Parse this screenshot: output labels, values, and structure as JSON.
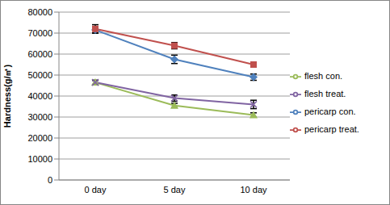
{
  "chart_data": {
    "type": "line",
    "y_label": "Hardness(g/㎡)",
    "categories": [
      "0 day",
      "5 day",
      "10 day"
    ],
    "series": [
      {
        "name": "pericarp con.",
        "color": "#4f81bd",
        "marker": "diamond",
        "values": [
          71500,
          57500,
          49000
        ],
        "error": [
          1500,
          2000,
          1500
        ]
      },
      {
        "name": "pericarp treat.",
        "color": "#c0504d",
        "marker": "square",
        "values": [
          72000,
          64000,
          55000
        ],
        "error": [
          2000,
          1500,
          1000
        ]
      },
      {
        "name": "flesh con.",
        "color": "#9bbb59",
        "marker": "triangle",
        "values": [
          46500,
          35500,
          31000
        ],
        "error": [
          1000,
          1000,
          1000
        ]
      },
      {
        "name": "flesh treat.",
        "color": "#8064a2",
        "marker": "x",
        "values": [
          46500,
          39000,
          36000
        ],
        "error": [
          1000,
          1500,
          2000
        ]
      }
    ],
    "ylim": [
      0,
      80000
    ],
    "yticks": [
      0,
      10000,
      20000,
      30000,
      40000,
      50000,
      60000,
      70000,
      80000
    ],
    "grid": true,
    "legend": "right"
  }
}
